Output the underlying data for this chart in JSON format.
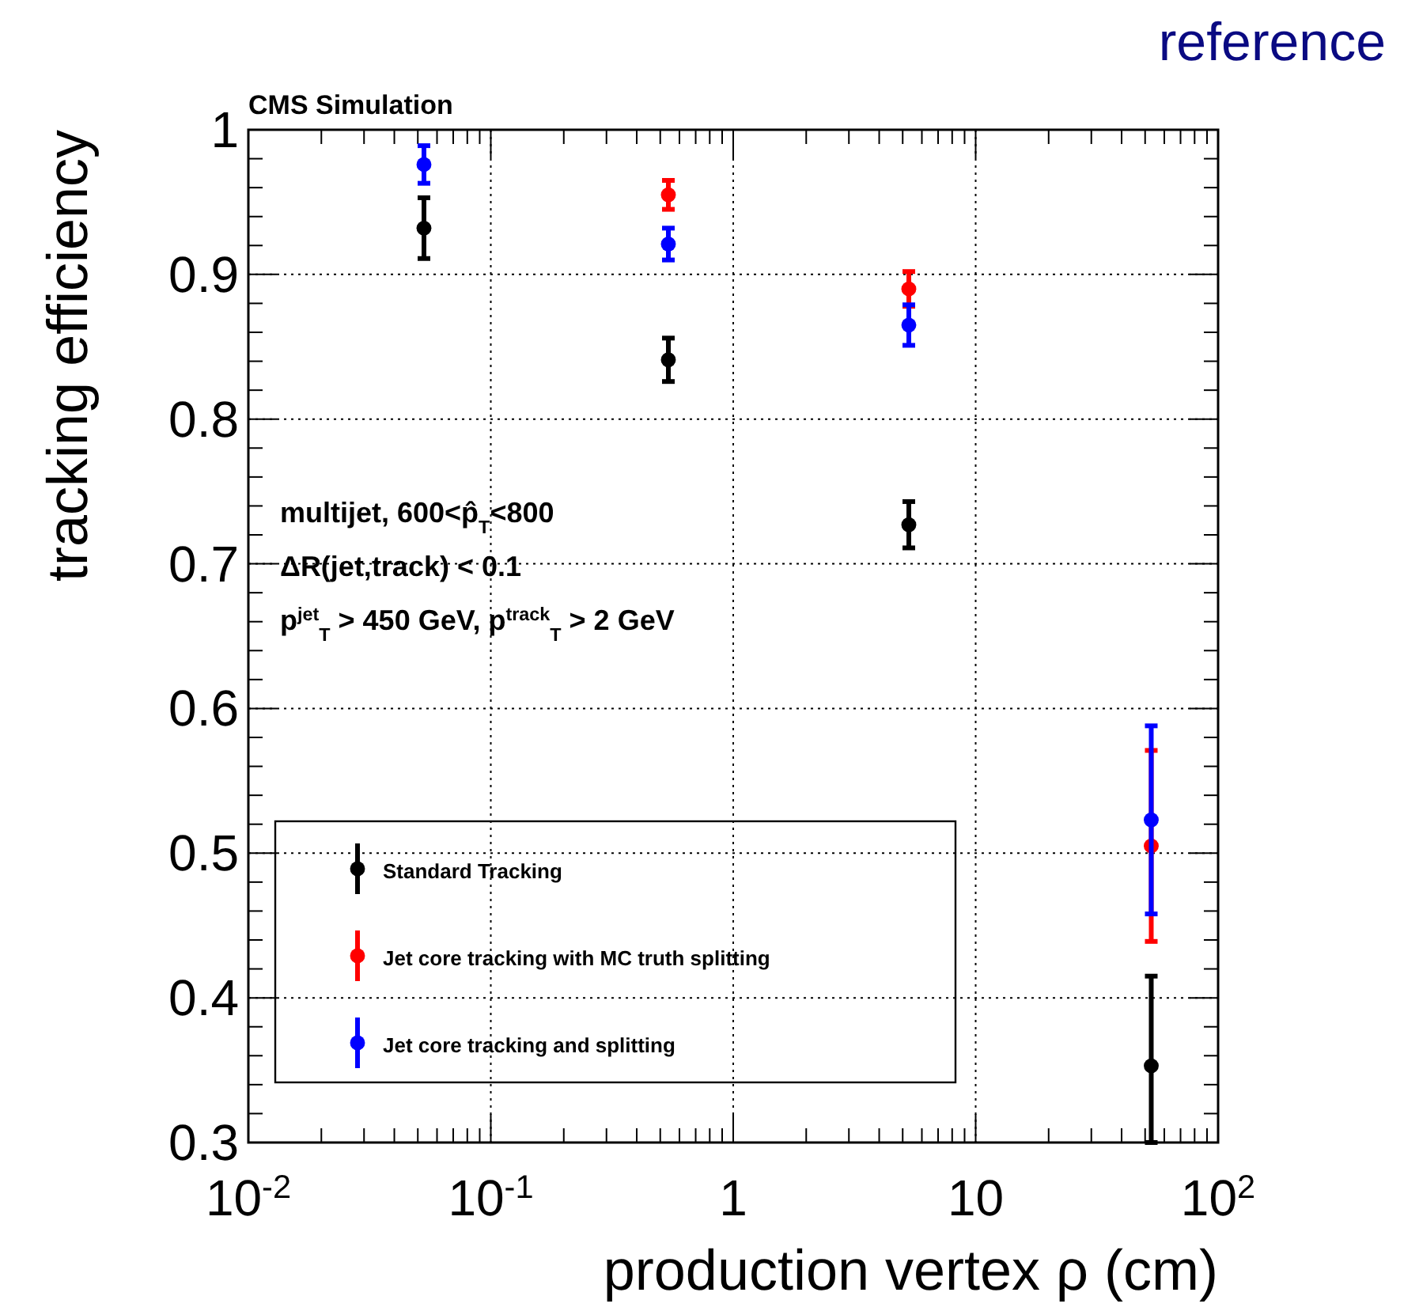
{
  "chart_data": {
    "type": "scatter",
    "title": "reference",
    "xlabel": "production vertex ρ (cm)",
    "ylabel": "tracking efficiency",
    "annotations": [
      "CMS Simulation",
      "multijet,  600<p̂$_{T}$<800",
      "ΔR(jet,track) < 0.1",
      "p$^{jet}$$_{T}$ > 450 GeV, p$^{track}$$_{T}$ > 2 GeV"
    ],
    "x": [
      0.053,
      0.54,
      5.3,
      53
    ],
    "series": [
      {
        "name": "Standard Tracking",
        "color": "#000000",
        "values": [
          0.932,
          0.841,
          0.727,
          0.353
        ],
        "errors": [
          0.021,
          0.015,
          0.016,
          [
            0.3,
            0.415
          ]
        ]
      },
      {
        "name": "Jet core tracking with MC truth splitting",
        "color": "#ff0000",
        "values": [
          null,
          0.955,
          0.89,
          0.505
        ],
        "errors": [
          null,
          0.01,
          0.012,
          0.066
        ]
      },
      {
        "name": "Jet core tracking and splitting",
        "color": "#0000ff",
        "values": [
          0.976,
          0.921,
          0.865,
          0.523
        ],
        "errors": [
          0.013,
          0.011,
          0.014,
          0.065
        ]
      }
    ],
    "log": "x",
    "xlim": [
      0.01,
      100
    ],
    "ylim": [
      0.3,
      1
    ],
    "xticks": [
      {
        "value": 0.01,
        "label": "10$^{-2}$"
      },
      {
        "value": 0.02,
        "label": null
      },
      {
        "value": 0.03,
        "label": null
      },
      {
        "value": 0.04,
        "label": null
      },
      {
        "value": 0.05,
        "label": null
      },
      {
        "value": 0.06,
        "label": null
      },
      {
        "value": 0.07,
        "label": null
      },
      {
        "value": 0.08,
        "label": null
      },
      {
        "value": 0.09,
        "label": null
      },
      {
        "value": 0.1,
        "label": "10$^{-1}$"
      },
      {
        "value": 0.2,
        "label": null
      },
      {
        "value": 0.3,
        "label": null
      },
      {
        "value": 0.4,
        "label": null
      },
      {
        "value": 0.5,
        "label": null
      },
      {
        "value": 0.6,
        "label": null
      },
      {
        "value": 0.7,
        "label": null
      },
      {
        "value": 0.8,
        "label": null
      },
      {
        "value": 0.9,
        "label": null
      },
      1,
      {
        "value": 2,
        "label": null
      },
      {
        "value": 3,
        "label": null
      },
      {
        "value": 4,
        "label": null
      },
      {
        "value": 5,
        "label": null
      },
      {
        "value": 6,
        "label": null
      },
      {
        "value": 7,
        "label": null
      },
      {
        "value": 8,
        "label": null
      },
      {
        "value": 9,
        "label": null
      },
      10,
      {
        "value": 20,
        "label": null
      },
      {
        "value": 30,
        "label": null
      },
      {
        "value": 40,
        "label": null
      },
      {
        "value": 50,
        "label": null
      },
      {
        "value": 60,
        "label": null
      },
      {
        "value": 70,
        "label": null
      },
      {
        "value": 80,
        "label": null
      },
      {
        "value": 90,
        "label": null
      },
      {
        "value": 100,
        "label": "10$^{2}$"
      }
    ],
    "yticks": [
      0.3,
      {
        "value": 0.32,
        "label": null
      },
      {
        "value": 0.34,
        "label": null
      },
      {
        "value": 0.36,
        "label": null
      },
      {
        "value": 0.38,
        "label": null
      },
      0.4,
      {
        "value": 0.42,
        "label": null
      },
      {
        "value": 0.44,
        "label": null
      },
      {
        "value": 0.46,
        "label": null
      },
      {
        "value": 0.48,
        "label": null
      },
      0.5,
      {
        "value": 0.52,
        "label": null
      },
      {
        "value": 0.54,
        "label": null
      },
      {
        "value": 0.56,
        "label": null
      },
      {
        "value": 0.58,
        "label": null
      },
      0.6,
      {
        "value": 0.62,
        "label": null
      },
      {
        "value": 0.64,
        "label": null
      },
      {
        "value": 0.66,
        "label": null
      },
      {
        "value": 0.68,
        "label": null
      },
      0.7,
      {
        "value": 0.72,
        "label": null
      },
      {
        "value": 0.74,
        "label": null
      },
      {
        "value": 0.76,
        "label": null
      },
      {
        "value": 0.78,
        "label": null
      },
      0.8,
      {
        "value": 0.82,
        "label": null
      },
      {
        "value": 0.84,
        "label": null
      },
      {
        "value": 0.86,
        "label": null
      },
      {
        "value": 0.88,
        "label": null
      },
      0.9,
      {
        "value": 0.92,
        "label": null
      },
      {
        "value": 0.94,
        "label": null
      },
      {
        "value": 0.96,
        "label": null
      },
      {
        "value": 0.98,
        "label": null
      },
      1
    ],
    "grid": true,
    "legend": "bottom left",
    "marker": "circle"
  }
}
